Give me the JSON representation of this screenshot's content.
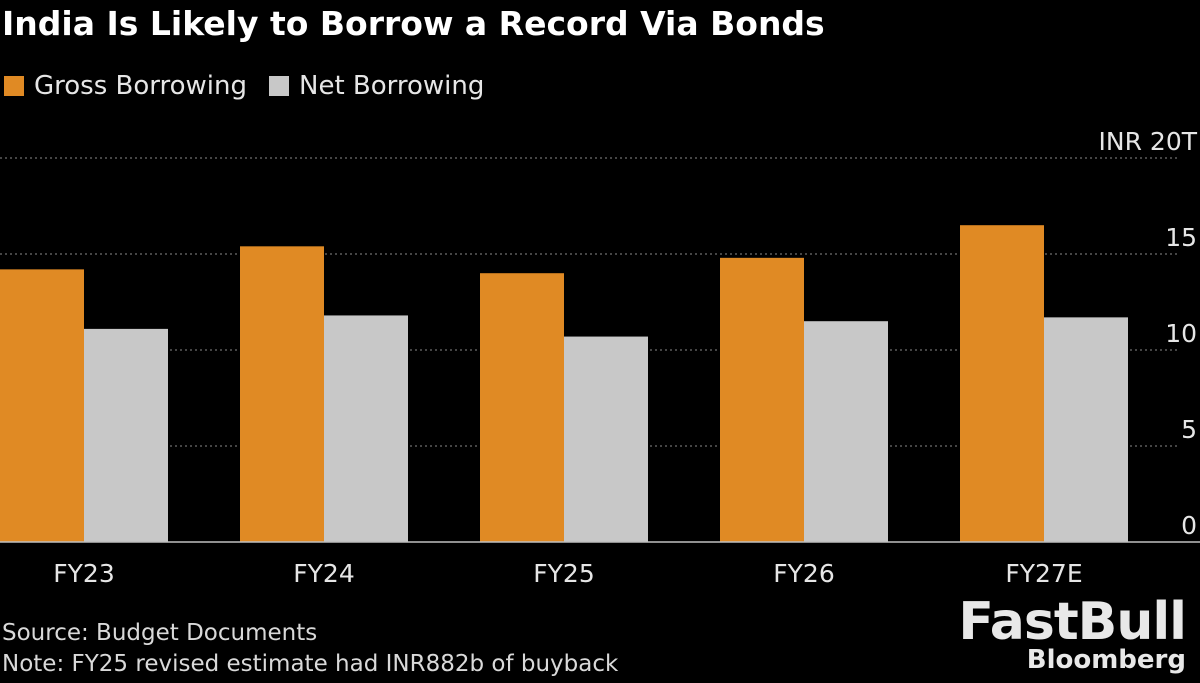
{
  "chart_data": {
    "type": "bar",
    "title": "India Is Likely to Borrow a Record Via Bonds",
    "categories": [
      "FY23",
      "FY24",
      "FY25",
      "FY26",
      "FY27E"
    ],
    "series": [
      {
        "name": "Gross Borrowing",
        "values": [
          14.2,
          15.4,
          14.0,
          14.8,
          16.5
        ],
        "color": "#e08a24"
      },
      {
        "name": "Net Borrowing",
        "values": [
          11.1,
          11.8,
          10.7,
          11.5,
          11.7
        ],
        "color": "#c8c8c8"
      }
    ],
    "y_ticks": [
      "0",
      "5",
      "10",
      "15",
      "INR 20T"
    ],
    "y_tick_values": [
      0,
      5,
      10,
      15,
      20
    ],
    "ylim": [
      0,
      20
    ],
    "grid": true,
    "legend": "top-left"
  },
  "footer": {
    "source": "Source: Budget Documents",
    "note": "Note: FY25 revised estimate had INR882b of buyback"
  },
  "watermark": {
    "brand": "FastBull",
    "sub": "Bloomberg"
  }
}
